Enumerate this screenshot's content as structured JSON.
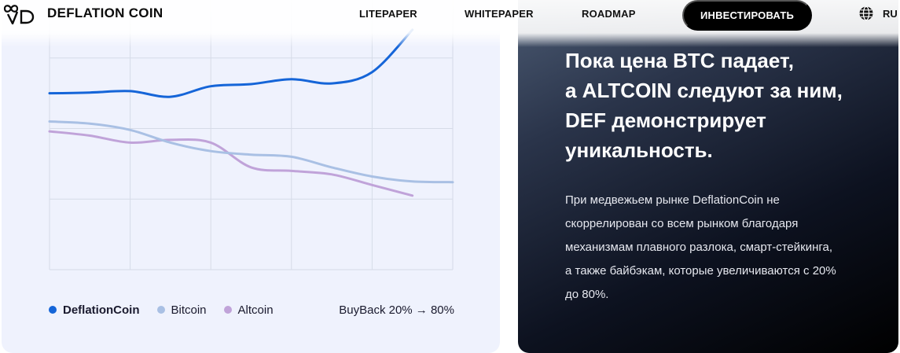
{
  "header": {
    "logo_text": "DEFLATION COIN",
    "nav": {
      "litepaper": "LITEPAPER",
      "whitepaper": "WHITEPAPER",
      "roadmap": "ROADMAP"
    },
    "invest_label": "ИНВЕСТИРОВАТЬ",
    "language": "RU"
  },
  "chart_card": {
    "legend": [
      {
        "label": "DeflationCoin",
        "color": "#1565d8"
      },
      {
        "label": "Bitcoin",
        "color": "#a9c0e4"
      },
      {
        "label": "Altcoin",
        "color": "#c0a3d9"
      }
    ],
    "buyback_label": "BuyBack 20% → 80%"
  },
  "chart_data": {
    "type": "line",
    "title": "",
    "xlabel": "",
    "ylabel": "",
    "grid": true,
    "x": [
      0,
      0.5,
      1,
      1.5,
      2,
      2.5,
      3,
      3.5,
      4,
      4.5,
      5
    ],
    "xlim": [
      0,
      5
    ],
    "ylim": [
      0,
      4
    ],
    "series": [
      {
        "name": "DeflationCoin",
        "color": "#1565d8",
        "values": [
          2.5,
          2.51,
          2.53,
          2.45,
          2.6,
          2.63,
          2.7,
          2.64,
          2.8,
          3.4,
          null
        ]
      },
      {
        "name": "Bitcoin",
        "color": "#a9c0e4",
        "values": [
          2.1,
          2.07,
          1.98,
          1.8,
          1.68,
          1.63,
          1.6,
          1.45,
          1.32,
          1.25,
          1.24
        ]
      },
      {
        "name": "Altcoin",
        "color": "#c0a3d9",
        "values": [
          1.96,
          1.9,
          1.8,
          1.84,
          1.8,
          1.45,
          1.4,
          1.35,
          1.2,
          1.05,
          null
        ]
      }
    ]
  },
  "info_panel": {
    "heading_lines": [
      "Пока цена BTC падает,",
      "а ALTCOIN следуют за ним,",
      "DEF демонстрирует",
      "уникальность."
    ],
    "body_lines": [
      "При медвежьем рынке DeflationCoin не",
      "скоррелирован со всем рынком благодаря",
      "механизмам плавного разлока, смарт-стейкинга,",
      "а также байбэкам, которые увеличиваются с 20%",
      "до 80%."
    ]
  }
}
